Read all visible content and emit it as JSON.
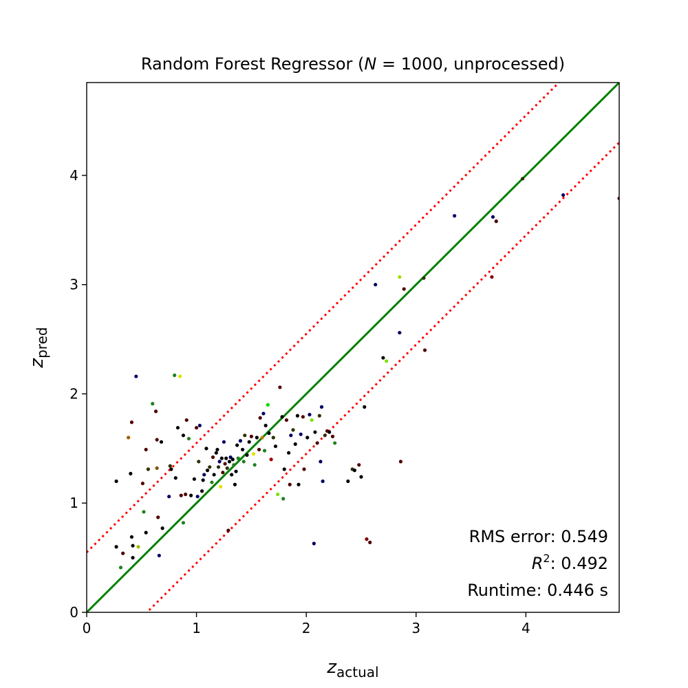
{
  "chart_data": {
    "type": "scatter",
    "title_parts": {
      "before": "Random Forest Regressor (",
      "italic": "N",
      "after": " = 1000, unprocessed)"
    },
    "xlabel": {
      "base": "z",
      "sub": "actual"
    },
    "ylabel": {
      "base": "z",
      "sub": "pred"
    },
    "xlim": [
      0,
      4.85
    ],
    "ylim": [
      0,
      4.85
    ],
    "xticks": [
      "0",
      "1",
      "2",
      "3",
      "4"
    ],
    "yticks": [
      "0",
      "1",
      "2",
      "3",
      "4"
    ],
    "grid": false,
    "stats": {
      "rms_label": "RMS error: 0.549",
      "r2_prefix": "R",
      "r2_sup": "2",
      "r2_value": ": 0.492",
      "runtime_label": "Runtime: 0.446 s"
    },
    "reference_lines": [
      {
        "name": "identity",
        "style": "solid",
        "color": "#008000",
        "offset": 0
      },
      {
        "name": "upper bound",
        "style": "dotted",
        "color": "#ff0000",
        "offset": 0.549
      },
      {
        "name": "lower bound",
        "style": "dotted",
        "color": "#ff0000",
        "offset": -0.549
      }
    ],
    "points": [
      [
        0.27,
        1.2,
        "#000000"
      ],
      [
        0.27,
        0.6,
        "#000000"
      ],
      [
        0.31,
        0.41,
        "#208020"
      ],
      [
        0.33,
        0.54,
        "#500000"
      ],
      [
        0.38,
        1.6,
        "#a06000"
      ],
      [
        0.4,
        1.27,
        "#000000"
      ],
      [
        0.41,
        1.74,
        "#500000"
      ],
      [
        0.41,
        0.69,
        "#000000"
      ],
      [
        0.42,
        0.61,
        "#000000"
      ],
      [
        0.42,
        0.5,
        "#000000"
      ],
      [
        0.45,
        2.16,
        "#000060"
      ],
      [
        0.47,
        0.6,
        "#a0c000"
      ],
      [
        0.51,
        1.18,
        "#500000"
      ],
      [
        0.52,
        0.92,
        "#208020"
      ],
      [
        0.54,
        1.49,
        "#500000"
      ],
      [
        0.54,
        0.73,
        "#000000"
      ],
      [
        0.56,
        1.31,
        "#303000"
      ],
      [
        0.6,
        1.91,
        "#208020"
      ],
      [
        0.63,
        1.84,
        "#500000"
      ],
      [
        0.64,
        1.58,
        "#500000"
      ],
      [
        0.64,
        1.32,
        "#805000"
      ],
      [
        0.65,
        0.87,
        "#500000"
      ],
      [
        0.66,
        0.52,
        "#000060"
      ],
      [
        0.68,
        1.56,
        "#000000"
      ],
      [
        0.69,
        0.77,
        "#000000"
      ],
      [
        0.75,
        1.06,
        "#000060"
      ],
      [
        0.76,
        1.34,
        "#303000"
      ],
      [
        0.77,
        1.31,
        "#000000"
      ],
      [
        0.8,
        2.17,
        "#208020"
      ],
      [
        0.81,
        1.23,
        "#000000"
      ],
      [
        0.83,
        1.69,
        "#000000"
      ],
      [
        0.85,
        2.16,
        "#e0e000"
      ],
      [
        0.86,
        1.07,
        "#500000"
      ],
      [
        0.88,
        0.82,
        "#208020"
      ],
      [
        0.88,
        1.62,
        "#000000"
      ],
      [
        0.9,
        1.08,
        "#500000"
      ],
      [
        0.91,
        1.76,
        "#500000"
      ],
      [
        0.93,
        1.59,
        "#208020"
      ],
      [
        0.95,
        1.07,
        "#000000"
      ],
      [
        0.98,
        1.22,
        "#000000"
      ],
      [
        1.0,
        1.69,
        "#500000"
      ],
      [
        1.01,
        1.06,
        "#000060"
      ],
      [
        1.02,
        1.38,
        "#303000"
      ],
      [
        1.03,
        1.71,
        "#000060"
      ],
      [
        1.05,
        1.11,
        "#000000"
      ],
      [
        1.06,
        1.21,
        "#000000"
      ],
      [
        1.07,
        1.26,
        "#000060"
      ],
      [
        1.09,
        1.5,
        "#000000"
      ],
      [
        1.1,
        1.3,
        "#000000"
      ],
      [
        1.12,
        1.33,
        "#303000"
      ],
      [
        1.14,
        1.19,
        "#208020"
      ],
      [
        1.15,
        1.42,
        "#500000"
      ],
      [
        1.16,
        1.26,
        "#000000"
      ],
      [
        1.18,
        1.46,
        "#000000"
      ],
      [
        1.19,
        1.49,
        "#000000"
      ],
      [
        1.2,
        1.33,
        "#303000"
      ],
      [
        1.21,
        1.38,
        "#000060"
      ],
      [
        1.22,
        1.15,
        "#e0e000"
      ],
      [
        1.23,
        1.41,
        "#000000"
      ],
      [
        1.24,
        1.28,
        "#500000"
      ],
      [
        1.25,
        1.56,
        "#000060"
      ],
      [
        1.26,
        1.36,
        "#500000"
      ],
      [
        1.27,
        1.41,
        "#000000"
      ],
      [
        1.28,
        1.32,
        "#303000"
      ],
      [
        1.29,
        0.75,
        "#500000"
      ],
      [
        1.3,
        1.38,
        "#000000"
      ],
      [
        1.31,
        1.42,
        "#000060"
      ],
      [
        1.32,
        1.26,
        "#000000"
      ],
      [
        1.33,
        1.4,
        "#000000"
      ],
      [
        1.34,
        1.35,
        "#208020"
      ],
      [
        1.35,
        1.17,
        "#000000"
      ],
      [
        1.36,
        1.29,
        "#000000"
      ],
      [
        1.37,
        1.53,
        "#000000"
      ],
      [
        1.38,
        1.41,
        "#208020"
      ],
      [
        1.4,
        1.57,
        "#000060"
      ],
      [
        1.42,
        1.49,
        "#000000"
      ],
      [
        1.43,
        1.38,
        "#208020"
      ],
      [
        1.44,
        1.62,
        "#303000"
      ],
      [
        1.46,
        1.44,
        "#000000"
      ],
      [
        1.48,
        1.56,
        "#000000"
      ],
      [
        1.5,
        1.61,
        "#500000"
      ],
      [
        1.52,
        1.45,
        "#e0e000"
      ],
      [
        1.53,
        1.35,
        "#208020"
      ],
      [
        1.55,
        1.6,
        "#000000"
      ],
      [
        1.57,
        1.49,
        "#500000"
      ],
      [
        1.58,
        1.78,
        "#500000"
      ],
      [
        1.6,
        1.6,
        "#c08000"
      ],
      [
        1.61,
        1.82,
        "#000060"
      ],
      [
        1.62,
        1.48,
        "#208020"
      ],
      [
        1.63,
        1.71,
        "#000000"
      ],
      [
        1.65,
        1.9,
        "#00e000"
      ],
      [
        1.66,
        1.64,
        "#000000"
      ],
      [
        1.68,
        1.4,
        "#a00000"
      ],
      [
        1.7,
        1.6,
        "#303000"
      ],
      [
        1.72,
        1.52,
        "#000000"
      ],
      [
        1.74,
        1.08,
        "#80e000"
      ],
      [
        1.76,
        2.06,
        "#500000"
      ],
      [
        1.78,
        1.79,
        "#000000"
      ],
      [
        1.79,
        1.04,
        "#208020"
      ],
      [
        1.8,
        1.31,
        "#000000"
      ],
      [
        1.82,
        1.76,
        "#500000"
      ],
      [
        1.84,
        1.46,
        "#000000"
      ],
      [
        1.85,
        1.17,
        "#500000"
      ],
      [
        1.86,
        1.62,
        "#000060"
      ],
      [
        1.88,
        1.67,
        "#303000"
      ],
      [
        1.9,
        1.54,
        "#000000"
      ],
      [
        1.92,
        1.8,
        "#000000"
      ],
      [
        1.93,
        1.17,
        "#000000"
      ],
      [
        1.95,
        1.63,
        "#000060"
      ],
      [
        1.97,
        1.79,
        "#500000"
      ],
      [
        1.98,
        1.31,
        "#500000"
      ],
      [
        2.01,
        1.6,
        "#000000"
      ],
      [
        2.03,
        1.81,
        "#000060"
      ],
      [
        2.05,
        1.76,
        "#80e000"
      ],
      [
        2.07,
        0.63,
        "#000060"
      ],
      [
        2.08,
        1.65,
        "#000000"
      ],
      [
        2.1,
        1.55,
        "#500000"
      ],
      [
        2.12,
        1.8,
        "#303000"
      ],
      [
        2.13,
        1.38,
        "#000060"
      ],
      [
        2.14,
        1.88,
        "#000060"
      ],
      [
        2.15,
        1.2,
        "#000060"
      ],
      [
        2.17,
        1.62,
        "#303000"
      ],
      [
        2.19,
        1.66,
        "#500000"
      ],
      [
        2.21,
        1.65,
        "#000000"
      ],
      [
        2.24,
        1.61,
        "#500000"
      ],
      [
        2.26,
        1.55,
        "#208020"
      ],
      [
        2.38,
        1.2,
        "#000000"
      ],
      [
        2.42,
        1.31,
        "#303000"
      ],
      [
        2.44,
        1.3,
        "#000000"
      ],
      [
        2.48,
        1.35,
        "#500000"
      ],
      [
        2.5,
        1.24,
        "#000000"
      ],
      [
        2.53,
        1.88,
        "#000000"
      ],
      [
        2.55,
        0.67,
        "#800000"
      ],
      [
        2.58,
        0.64,
        "#500000"
      ],
      [
        2.63,
        3.0,
        "#000060"
      ],
      [
        2.7,
        2.33,
        "#000000"
      ],
      [
        2.73,
        2.3,
        "#80e000"
      ],
      [
        2.85,
        3.07,
        "#a0e000"
      ],
      [
        2.85,
        2.56,
        "#000060"
      ],
      [
        2.86,
        1.38,
        "#500000"
      ],
      [
        2.89,
        2.96,
        "#500000"
      ],
      [
        3.07,
        3.06,
        "#303000"
      ],
      [
        3.08,
        2.4,
        "#500000"
      ],
      [
        3.35,
        3.63,
        "#000060"
      ],
      [
        3.69,
        3.07,
        "#800000"
      ],
      [
        3.7,
        3.62,
        "#000060"
      ],
      [
        3.73,
        3.58,
        "#500000"
      ],
      [
        3.97,
        3.97,
        "#303000"
      ],
      [
        4.34,
        3.82,
        "#000060"
      ],
      [
        4.85,
        3.79,
        "#500000"
      ]
    ]
  }
}
